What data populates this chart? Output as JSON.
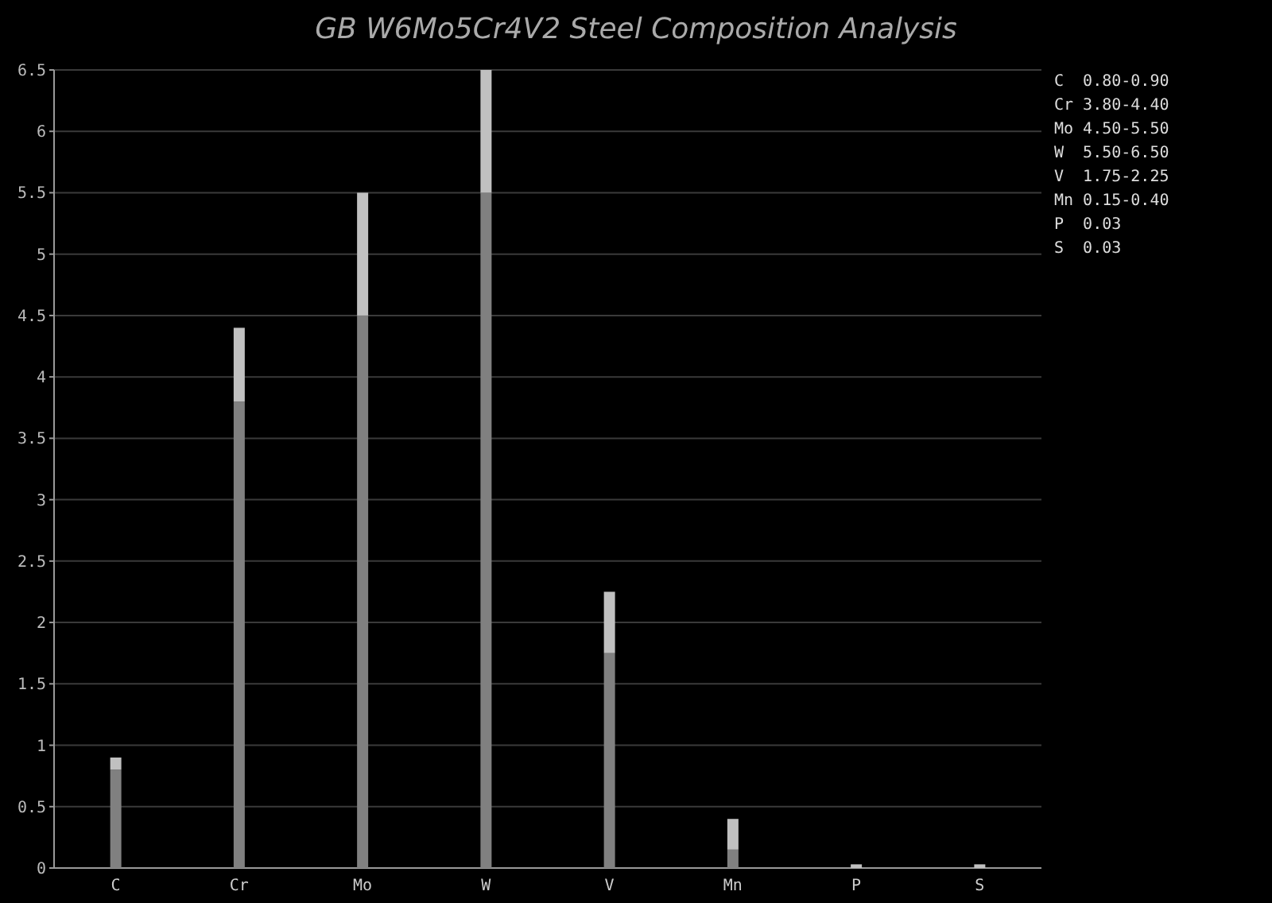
{
  "chart_data": {
    "type": "bar",
    "title": "GB W6Mo5Cr4V2 Steel Composition Analysis",
    "categories": [
      "C",
      "Cr",
      "Mo",
      "W",
      "V",
      "Mn",
      "P",
      "S"
    ],
    "stacked": true,
    "series": [
      {
        "color": "#808080",
        "values": [
          0.8,
          3.8,
          4.5,
          5.5,
          1.75,
          0.15,
          0,
          0
        ]
      },
      {
        "color": "#c0c0c0",
        "values": [
          0.1,
          0.6,
          1.0,
          1.0,
          0.5,
          0.25,
          0.03,
          0.03
        ]
      }
    ],
    "ylim": [
      0,
      6.5
    ],
    "yticks": [
      0,
      0.5,
      1,
      1.5,
      2,
      2.5,
      3,
      3.5,
      4,
      4.5,
      5,
      5.5,
      6,
      6.5
    ],
    "grid": "y",
    "annotations": [
      "C  0.80-0.90",
      "Cr 3.80-4.40",
      "Mo 4.50-5.50",
      "W  5.50-6.50",
      "V  1.75-2.25",
      "Mn 0.15-0.40",
      "P  0.03",
      "S  0.03"
    ]
  }
}
